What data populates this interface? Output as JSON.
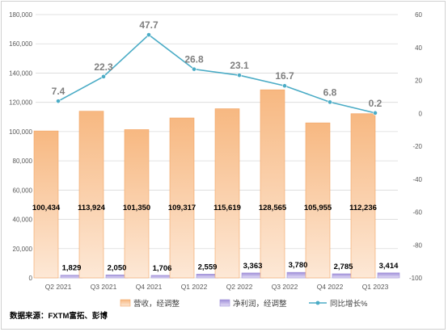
{
  "chart_data": {
    "type": "bar",
    "categories": [
      "Q2 2021",
      "Q3 2021",
      "Q4 2021",
      "Q1 2022",
      "Q2 2022",
      "Q3 2022",
      "Q4 2022",
      "Q1 2023"
    ],
    "series": [
      {
        "name": "营收，经调整",
        "type": "bar",
        "axis": "left",
        "color": "#f7b881",
        "values": [
          100434,
          113924,
          101350,
          109317,
          115619,
          128565,
          105955,
          112236
        ],
        "labels": [
          "100,434",
          "113,924",
          "101,350",
          "109,317",
          "115,619",
          "128,565",
          "105,955",
          "112,236"
        ]
      },
      {
        "name": "净利润，经调整",
        "type": "bar",
        "axis": "left",
        "color": "#cfc6ee",
        "values": [
          1829,
          2050,
          1706,
          2559,
          3363,
          3780,
          2785,
          3414
        ],
        "labels": [
          "1,829",
          "2,050",
          "1,706",
          "2,559",
          "3,363",
          "3,780",
          "2,785",
          "3,414"
        ]
      },
      {
        "name": "同比增长%",
        "type": "line",
        "axis": "right",
        "color": "#4bacc6",
        "values": [
          7.4,
          22.3,
          47.7,
          26.8,
          23.1,
          16.7,
          6.8,
          0.2
        ],
        "labels": [
          "7.4",
          "22.3",
          "47.7",
          "26.8",
          "23.1",
          "16.7",
          "6.8",
          "0.2"
        ]
      }
    ],
    "y_left": {
      "range": [
        0,
        180000
      ],
      "ticks": [
        0,
        20000,
        40000,
        60000,
        80000,
        100000,
        120000,
        140000,
        160000,
        180000
      ],
      "tick_labels": [
        "0",
        "20,000",
        "40,000",
        "60,000",
        "80,000",
        "100,000",
        "120,000",
        "140,000",
        "160,000",
        "180,000"
      ]
    },
    "y_right": {
      "range": [
        -100,
        60
      ],
      "ticks": [
        -100,
        -80,
        -60,
        -40,
        -20,
        0,
        20,
        40,
        60
      ],
      "tick_labels": [
        "-100",
        "-80",
        "-60",
        "-40",
        "-20",
        "0",
        "20",
        "40",
        "60"
      ]
    },
    "grid": true,
    "legend_position": "bottom",
    "source_note": "数据来源：FXTM富拓、彭博"
  }
}
